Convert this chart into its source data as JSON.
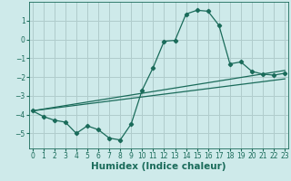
{
  "xlabel": "Humidex (Indice chaleur)",
  "bg_color": "#ceeaea",
  "grid_color": "#b0cccc",
  "line_color": "#1a6b5a",
  "x_values": [
    0,
    1,
    2,
    3,
    4,
    5,
    6,
    7,
    8,
    9,
    10,
    11,
    12,
    13,
    14,
    15,
    16,
    17,
    18,
    19,
    20,
    21,
    22,
    23
  ],
  "series1": [
    -3.8,
    -4.1,
    -4.3,
    -4.4,
    -5.0,
    -4.6,
    -4.8,
    -5.25,
    -5.35,
    -4.5,
    -2.7,
    -1.5,
    -0.1,
    -0.05,
    1.35,
    1.55,
    1.5,
    0.75,
    -1.3,
    -1.2,
    -1.7,
    -1.85,
    -1.9,
    -1.8
  ],
  "series2_x": [
    0,
    23
  ],
  "series2_y": [
    -3.8,
    -1.65
  ],
  "series3_x": [
    0,
    23
  ],
  "series3_y": [
    -3.8,
    -2.1
  ],
  "xlim": [
    -0.3,
    23.3
  ],
  "ylim": [
    -5.8,
    2.0
  ],
  "yticks": [
    -5,
    -4,
    -3,
    -2,
    -1,
    0,
    1
  ],
  "xticks": [
    0,
    1,
    2,
    3,
    4,
    5,
    6,
    7,
    8,
    9,
    10,
    11,
    12,
    13,
    14,
    15,
    16,
    17,
    18,
    19,
    20,
    21,
    22,
    23
  ],
  "tick_fontsize": 5.5,
  "xlabel_fontsize": 7.5
}
